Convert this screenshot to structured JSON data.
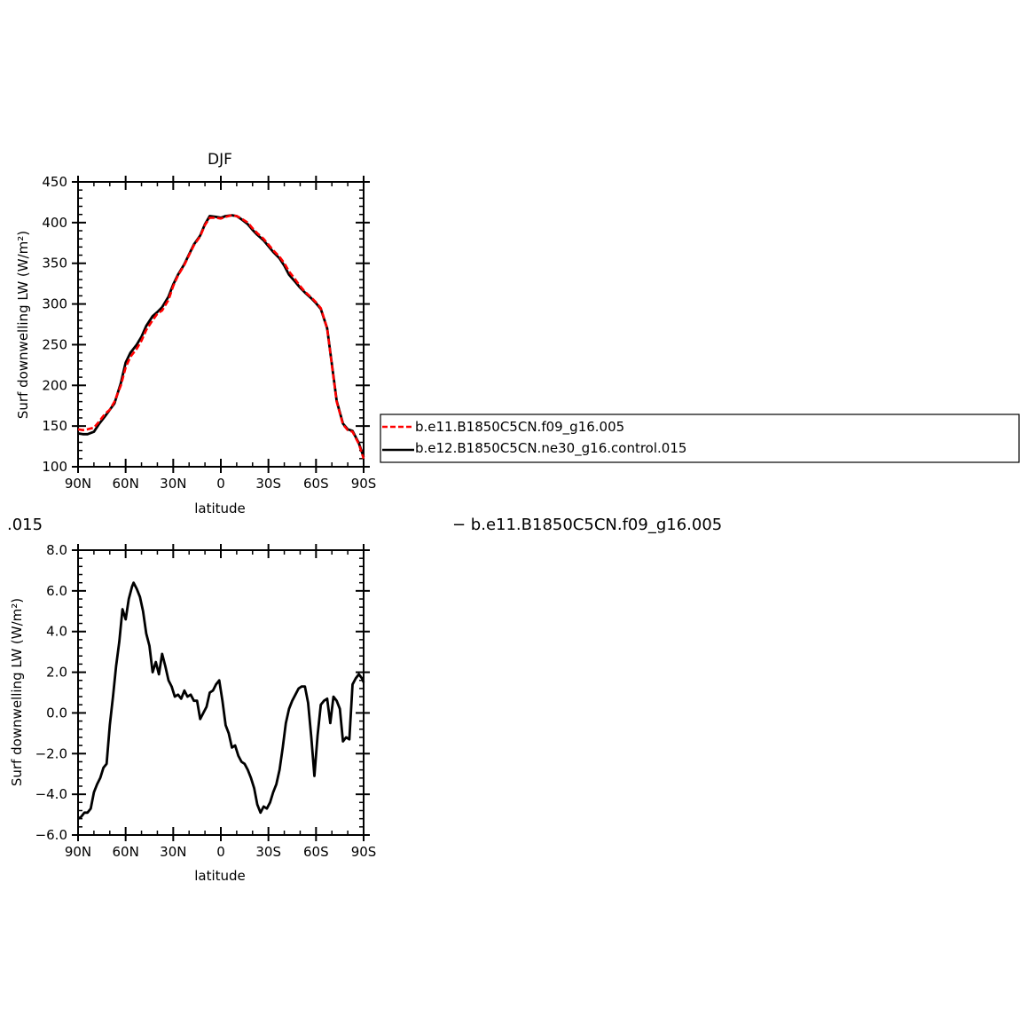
{
  "colors": {
    "red_series": "#ff0000",
    "black_series": "#000000"
  },
  "top_caption": ".015",
  "top_caption_right": "−  b.e11.B1850C5CN.f09_g16.005",
  "chart_data": [
    {
      "type": "line",
      "title": "DJF",
      "xlabel": "latitude",
      "ylabel": "Surf downwelling LW (W/m²)",
      "xlim": [
        90,
        -90
      ],
      "ylim": [
        100,
        450
      ],
      "xticks": [
        90,
        60,
        30,
        0,
        -30,
        -60,
        -90
      ],
      "xtick_labels": [
        "90N",
        "60N",
        "30N",
        "0",
        "30S",
        "60S",
        "90S"
      ],
      "yticks": [
        100,
        150,
        200,
        250,
        300,
        350,
        400,
        450
      ],
      "ytick_labels": [
        "100",
        "150",
        "200",
        "250",
        "300",
        "350",
        "400",
        "450"
      ],
      "legend": {
        "placement": "right",
        "entries": [
          "b.e11.B1850C5CN.f09_g16.005",
          "b.e12.B1850C5CN.ne30_g16.control.015"
        ]
      },
      "series": [
        {
          "name": "b.e11.B1850C5CN.f09_g16.005",
          "style": "dashed-red",
          "x": [
            90,
            87,
            84,
            80,
            77,
            73,
            70,
            67,
            63,
            60,
            57,
            53,
            50,
            47,
            43,
            40,
            37,
            33,
            30,
            27,
            23,
            20,
            17,
            13,
            10,
            7,
            3,
            0,
            -3,
            -7,
            -10,
            -13,
            -17,
            -20,
            -23,
            -27,
            -30,
            -33,
            -37,
            -40,
            -43,
            -47,
            -50,
            -53,
            -57,
            -60,
            -63,
            -67,
            -70,
            -73,
            -77,
            -80,
            -83,
            -87,
            -90
          ],
          "y": [
            146,
            145,
            146,
            148,
            155,
            165,
            170,
            180,
            200,
            222,
            235,
            245,
            255,
            268,
            280,
            288,
            292,
            305,
            322,
            335,
            348,
            360,
            372,
            383,
            397,
            406,
            406,
            405,
            407,
            409,
            408,
            405,
            400,
            393,
            387,
            380,
            373,
            366,
            358,
            350,
            340,
            330,
            322,
            315,
            308,
            302,
            295,
            270,
            225,
            180,
            152,
            145,
            143,
            128,
            110
          ]
        },
        {
          "name": "b.e12.B1850C5CN.ne30_g16.control.015",
          "style": "solid-black",
          "x": [
            90,
            87,
            84,
            80,
            77,
            73,
            70,
            67,
            63,
            60,
            57,
            53,
            50,
            47,
            43,
            40,
            37,
            33,
            30,
            27,
            23,
            20,
            17,
            13,
            10,
            7,
            3,
            0,
            -3,
            -7,
            -10,
            -13,
            -17,
            -20,
            -23,
            -27,
            -30,
            -33,
            -37,
            -40,
            -43,
            -47,
            -50,
            -53,
            -57,
            -60,
            -63,
            -67,
            -70,
            -73,
            -77,
            -80,
            -83,
            -87,
            -90
          ],
          "y": [
            141,
            140,
            140,
            143,
            152,
            162,
            170,
            178,
            203,
            228,
            240,
            250,
            260,
            273,
            285,
            290,
            296,
            309,
            324,
            336,
            349,
            361,
            373,
            384,
            398,
            408,
            407,
            406,
            408,
            409,
            408,
            404,
            398,
            391,
            385,
            378,
            371,
            364,
            356,
            347,
            336,
            327,
            320,
            314,
            307,
            301,
            294,
            270,
            226,
            181,
            153,
            146,
            144,
            129,
            112
          ]
        }
      ]
    },
    {
      "type": "line",
      "title": "",
      "xlabel": "latitude",
      "ylabel": "Surf downwelling LW (W/m²)",
      "xlim": [
        90,
        -90
      ],
      "ylim": [
        -6,
        8
      ],
      "xticks": [
        90,
        60,
        30,
        0,
        -30,
        -60,
        -90
      ],
      "xtick_labels": [
        "90N",
        "60N",
        "30N",
        "0",
        "30S",
        "60S",
        "90S"
      ],
      "yticks": [
        -6,
        -4,
        -2,
        0,
        2,
        4,
        6,
        8
      ],
      "ytick_labels": [
        "−6.0",
        "−4.0",
        "−2.0",
        "0.0",
        "2.0",
        "4.0",
        "6.0",
        "8.0"
      ],
      "series": [
        {
          "name": "",
          "style": "solid-black",
          "x": [
            90,
            88,
            86,
            84,
            82,
            80,
            78,
            76,
            74,
            72,
            70,
            68,
            66,
            64,
            62,
            60,
            58,
            56,
            55,
            53,
            51,
            49,
            47,
            45,
            43,
            41,
            39,
            37,
            35,
            33,
            31,
            29,
            27,
            25,
            23,
            21,
            19,
            17,
            15,
            13,
            11,
            9,
            7,
            5,
            3,
            1,
            -1,
            -3,
            -5,
            -7,
            -9,
            -11,
            -13,
            -15,
            -17,
            -19,
            -21,
            -23,
            -25,
            -27,
            -29,
            -31,
            -33,
            -35,
            -37,
            -39,
            -41,
            -43,
            -45,
            -47,
            -49,
            -51,
            -53,
            -55,
            -57,
            -59,
            -61,
            -63,
            -65,
            -67,
            -69,
            -71,
            -73,
            -75,
            -77,
            -79,
            -81,
            -83,
            -85,
            -87,
            -89,
            -90
          ],
          "y": [
            -5.2,
            -5.1,
            -4.9,
            -4.9,
            -4.7,
            -3.9,
            -3.5,
            -3.2,
            -2.7,
            -2.5,
            -0.6,
            0.8,
            2.3,
            3.5,
            5.1,
            4.6,
            5.6,
            6.2,
            6.4,
            6.1,
            5.7,
            5.0,
            3.9,
            3.3,
            2.0,
            2.5,
            1.9,
            2.9,
            2.3,
            1.6,
            1.3,
            0.8,
            0.9,
            0.7,
            1.1,
            0.8,
            0.9,
            0.6,
            0.6,
            -0.3,
            0.0,
            0.3,
            1.0,
            1.1,
            1.4,
            1.6,
            0.6,
            -0.6,
            -1.0,
            -1.7,
            -1.6,
            -2.1,
            -2.4,
            -2.5,
            -2.8,
            -3.2,
            -3.7,
            -4.5,
            -4.9,
            -4.6,
            -4.7,
            -4.4,
            -3.9,
            -3.5,
            -2.8,
            -1.7,
            -0.5,
            0.2,
            0.6,
            0.9,
            1.2,
            1.3,
            1.3,
            0.5,
            -1.2,
            -3.1,
            -1.1,
            0.4,
            0.6,
            0.7,
            -0.5,
            0.8,
            0.6,
            0.2,
            -1.4,
            -1.2,
            -1.3,
            1.4,
            1.7,
            1.9,
            1.7,
            1.5
          ]
        }
      ]
    }
  ]
}
